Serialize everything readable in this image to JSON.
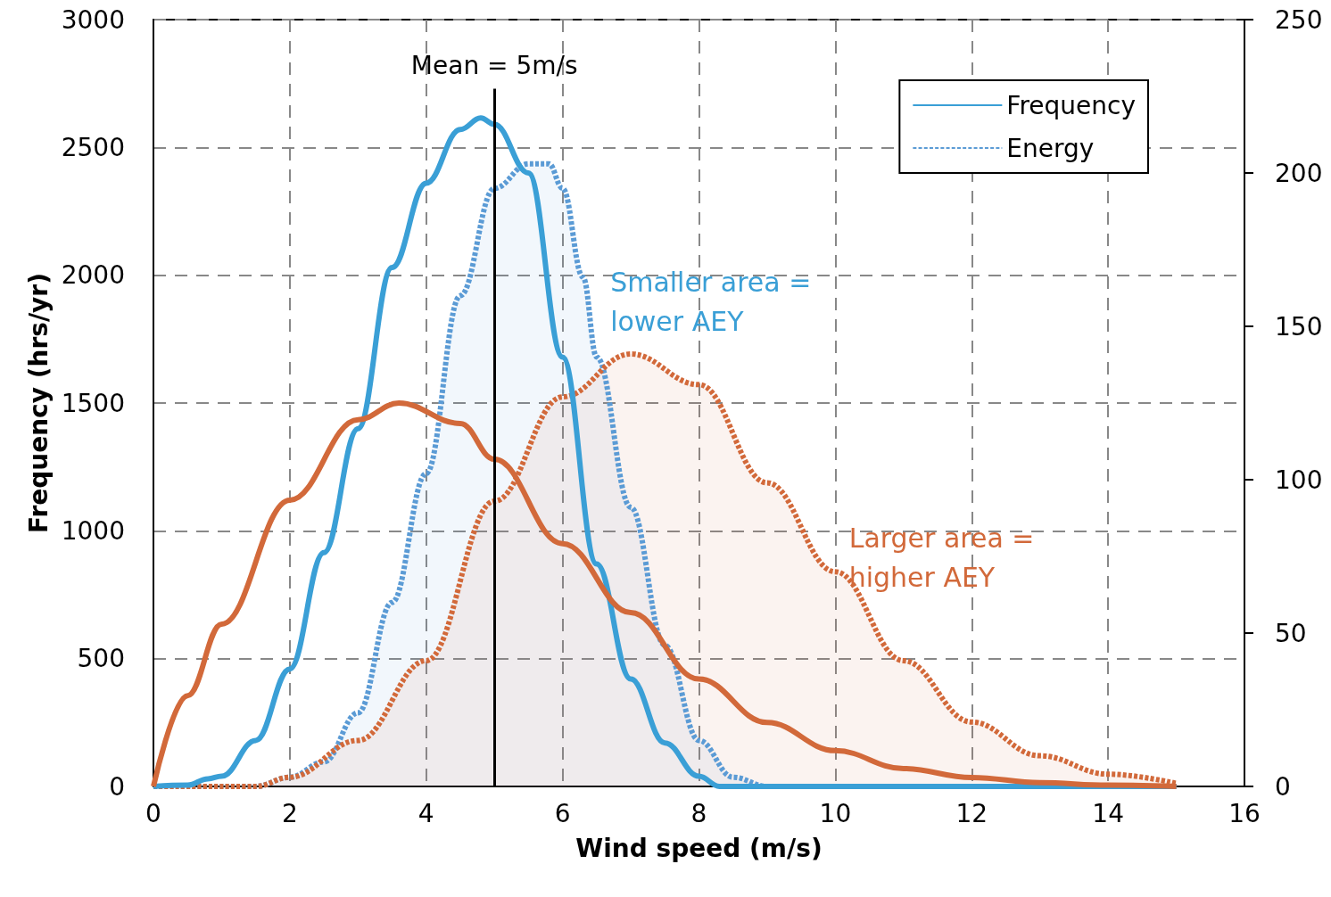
{
  "chart_data": {
    "type": "line",
    "xlabel": "Wind speed (m/s)",
    "ylabel": "Frequency (hrs/yr)",
    "xlim": [
      0,
      16
    ],
    "xticks": [
      0,
      2,
      4,
      6,
      8,
      10,
      12,
      14,
      16
    ],
    "ylim": [
      0,
      3000
    ],
    "yticks": [
      0,
      500,
      1000,
      1500,
      2000,
      2500,
      3000
    ],
    "y2lim": [
      0,
      250
    ],
    "y2ticks": [
      0,
      50,
      100,
      150,
      200,
      250
    ],
    "grid": true,
    "legend": "top right",
    "marker": "none",
    "series": [
      {
        "name": "Frequency",
        "color": "#3a9fd6",
        "line_style": "solid",
        "x": [
          0,
          0.5,
          0.8,
          1,
          1.5,
          2,
          2.5,
          3,
          3.5,
          4,
          4.5,
          4.8,
          5,
          5.5,
          6,
          6.5,
          7,
          7.5,
          8,
          8.3,
          9,
          10,
          11,
          12,
          13,
          14,
          15
        ],
        "values": [
          0,
          5,
          30,
          40,
          180,
          460,
          915,
          1400,
          2030,
          2360,
          2570,
          2615,
          2590,
          2400,
          1680,
          870,
          420,
          170,
          40,
          0,
          0,
          0,
          0,
          0,
          0,
          0,
          0
        ]
      },
      {
        "color": "#d2693a",
        "line_style": "solid",
        "x": [
          0,
          0.5,
          1,
          2,
          3,
          3.6,
          4.5,
          5,
          6,
          7,
          8,
          9,
          10,
          11,
          12,
          13,
          14,
          15
        ],
        "values": [
          0,
          355,
          635,
          1120,
          1435,
          1500,
          1420,
          1280,
          950,
          680,
          420,
          250,
          140,
          70,
          35,
          15,
          5,
          0
        ]
      },
      {
        "name": "Energy",
        "type": "area",
        "axis": "y2",
        "color": "#5b9bd5",
        "line_style": "dashed",
        "x": [
          0,
          1.5,
          2,
          2.5,
          3,
          3.5,
          4,
          4.5,
          5,
          5.5,
          5.8,
          6,
          6.3,
          6.5,
          7,
          7.5,
          8,
          8.5,
          9,
          10,
          11,
          12,
          13,
          14,
          15
        ],
        "values": [
          0,
          0,
          3,
          8,
          24,
          60,
          102,
          160,
          195,
          203,
          203,
          195,
          166,
          140,
          91,
          46,
          15,
          3,
          0,
          0,
          0,
          0,
          0,
          0,
          0
        ]
      },
      {
        "type": "area",
        "axis": "y2",
        "color": "#d2693a",
        "line_style": "dashed",
        "x": [
          0,
          1.5,
          2,
          3,
          4,
          5,
          6,
          7,
          8,
          9,
          10,
          11,
          12,
          13,
          14,
          15
        ],
        "values": [
          0,
          0,
          3,
          15,
          41,
          93,
          127,
          141,
          131,
          99,
          70,
          41,
          21,
          10,
          4,
          1
        ]
      }
    ],
    "ref_lines": [
      {
        "axis": "x",
        "value": 5,
        "label": "Mean = 5m/s",
        "color": "#000000"
      }
    ],
    "annotations": [
      "Smaller area =\nlower AEY",
      "Larger area =\nhigher AEY"
    ]
  }
}
